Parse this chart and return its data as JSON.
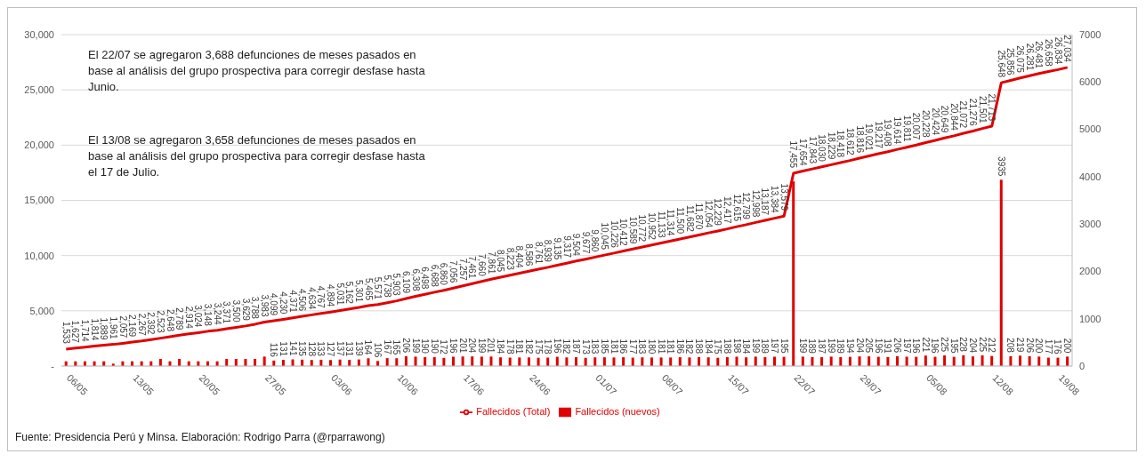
{
  "chart_data": {
    "type": "bar",
    "categories": [
      "06/05",
      null,
      null,
      null,
      null,
      null,
      null,
      "13/05",
      null,
      null,
      null,
      null,
      null,
      null,
      "20/05",
      null,
      null,
      null,
      null,
      null,
      null,
      "27/05",
      null,
      null,
      null,
      null,
      null,
      null,
      "03/06",
      null,
      null,
      null,
      null,
      null,
      null,
      "10/06",
      null,
      null,
      null,
      null,
      null,
      null,
      "17/06",
      null,
      null,
      null,
      null,
      null,
      null,
      "24/06",
      null,
      null,
      null,
      null,
      null,
      null,
      "01/07",
      null,
      null,
      null,
      null,
      null,
      null,
      "08/07",
      null,
      null,
      null,
      null,
      null,
      null,
      "15/07",
      null,
      null,
      null,
      null,
      null,
      null,
      "22/07",
      null,
      null,
      null,
      null,
      null,
      null,
      "29/07",
      null,
      null,
      null,
      null,
      null,
      null,
      "05/08",
      null,
      null,
      null,
      null,
      null,
      null,
      "12/08",
      null,
      null,
      null,
      null,
      null,
      null,
      "19/08",
      null
    ],
    "series": [
      {
        "name": "Fallecidos (nuevos)",
        "color": "#e00000",
        "axis": "y2",
        "values": [
          100,
          100,
          100,
          100,
          100,
          50,
          100,
          100,
          100,
          100,
          150,
          100,
          150,
          100,
          100,
          100,
          100,
          150,
          150,
          150,
          150,
          200,
          116,
          131,
          141,
          135,
          128,
          133,
          127,
          137,
          131,
          139,
          164,
          106,
          167,
          165,
          206,
          199,
          190,
          190,
          172,
          196,
          201,
          204,
          199,
          201,
          184,
          178,
          181,
          182,
          175,
          178,
          196,
          182,
          187,
          173,
          183,
          185,
          181,
          186,
          177,
          183,
          180,
          181,
          181,
          186,
          182,
          188,
          184,
          175,
          188,
          198,
          184,
          199,
          189,
          197,
          195,
          3900,
          199,
          189,
          187,
          199,
          189,
          194,
          204,
          205,
          196,
          191,
          206,
          197,
          196,
          221,
          196,
          225,
          195,
          228,
          204,
          225,
          212,
          3935,
          208,
          219,
          206,
          200,
          177,
          176,
          200
        ],
        "value_labels": [
          null,
          null,
          null,
          null,
          null,
          null,
          null,
          null,
          null,
          null,
          null,
          null,
          null,
          null,
          null,
          null,
          null,
          null,
          null,
          null,
          null,
          null,
          "116",
          "131",
          "141",
          "135",
          "128",
          "133",
          "127",
          "137",
          "131",
          "139",
          "164",
          "106",
          "167",
          "165",
          "206",
          "199",
          "190",
          "190",
          "172",
          "196",
          "201",
          "204",
          "199",
          "201",
          "184",
          "178",
          "181",
          "182",
          "175",
          "178",
          "196",
          "182",
          "187",
          "173",
          "183",
          "185",
          "181",
          "186",
          "177",
          "183",
          "180",
          "181",
          "181",
          "186",
          "182",
          "188",
          "184",
          "175",
          "188",
          "198",
          "184",
          "199",
          "189",
          "197",
          "195",
          null,
          "199",
          "189",
          "187",
          "199",
          "189",
          "194",
          "204",
          "205",
          "196",
          "191",
          "206",
          "197",
          "196",
          "221",
          "196",
          "225",
          "195",
          "228",
          "204",
          "225",
          "212",
          "3935",
          "208",
          "219",
          "206",
          "200",
          "177",
          "176",
          "200"
        ]
      },
      {
        "type": "line",
        "name": "Fallecidos (Total)",
        "color": "#e00000",
        "values": [
          1533,
          1627,
          1714,
          1814,
          1889,
          1961,
          2057,
          2169,
          2267,
          2392,
          2523,
          2648,
          2789,
          2914,
          3024,
          3148,
          3244,
          3371,
          3500,
          3629,
          3788,
          3983,
          4099,
          4230,
          4371,
          4506,
          4634,
          4767,
          4894,
          5031,
          5162,
          5301,
          5465,
          5571,
          5738,
          5903,
          6109,
          6308,
          6498,
          6688,
          6860,
          7056,
          7257,
          7461,
          7660,
          7861,
          8045,
          8223,
          8404,
          8586,
          8761,
          8939,
          9135,
          9317,
          9504,
          9677,
          9860,
          10045,
          10226,
          10412,
          10589,
          10772,
          10952,
          11133,
          11314,
          11500,
          11682,
          11870,
          12054,
          12229,
          12417,
          12615,
          12799,
          12998,
          13187,
          13384,
          13579,
          17455,
          17654,
          17843,
          18030,
          18229,
          18418,
          18612,
          18816,
          19021,
          19217,
          19408,
          19614,
          19811,
          20007,
          20228,
          20424,
          20649,
          20844,
          21072,
          21276,
          21501,
          21713,
          25648,
          25856,
          26075,
          26281,
          26481,
          26658,
          26834,
          27034
        ],
        "value_labels": [
          "1,533",
          "1,627",
          "1,714",
          "1,814",
          "1,889",
          "1,961",
          "2,057",
          "2,169",
          "2,267",
          "2,392",
          "2,523",
          "2,648",
          "2,789",
          "2,914",
          "3,024",
          "3,148",
          "3,244",
          "3,371",
          "3,500",
          "3,629",
          "3,788",
          "3,983",
          "4,099",
          "4,230",
          "4,371",
          "4,506",
          "4,634",
          "4,767",
          "4,894",
          "5,031",
          "5,162",
          "5,301",
          "5,465",
          "5,571",
          "5,738",
          "5,903",
          "6,109",
          "6,308",
          "6,498",
          "6,688",
          "6,860",
          "7,056",
          "7,257",
          "7,461",
          "7,660",
          "7,861",
          "8,045",
          "8,223",
          "8,404",
          "8,586",
          "8,761",
          "8,939",
          "9,135",
          "9,317",
          "9,504",
          "9,677",
          "9,860",
          "10,045",
          "10,226",
          "10,412",
          "10,589",
          "10,772",
          "10,952",
          "11,133",
          "11,314",
          "11,500",
          "11,682",
          "11,870",
          "12,054",
          "12,229",
          "12,417",
          "12,615",
          "12,799",
          "12,998",
          "13,187",
          "13,384",
          "13,579",
          "17,455",
          "17,654",
          "17,843",
          "18,030",
          "18,229",
          "18,418",
          "18,612",
          "18,816",
          "19,021",
          "19,217",
          "19,408",
          "19,614",
          "19,811",
          "20,007",
          "20,228",
          "20,424",
          "20,649",
          "20,844",
          "21,072",
          "21,276",
          "21,501",
          "21,713",
          "25,648",
          "25,856",
          "26,075",
          "26,281",
          "26,481",
          "26,658",
          "26,834",
          "27,034"
        ]
      }
    ],
    "ylim": [
      0,
      30000
    ],
    "yticks": [
      {
        "value": 0,
        "label": "-"
      },
      {
        "value": 5000,
        "label": "5,000"
      },
      {
        "value": 10000,
        "label": "10,000"
      },
      {
        "value": 15000,
        "label": "15,000"
      },
      {
        "value": 20000,
        "label": "20,000"
      },
      {
        "value": 25000,
        "label": "25,000"
      },
      {
        "value": 30000,
        "label": "30,000"
      }
    ],
    "y2lim": [
      0,
      7000
    ],
    "y2ticks": [
      0,
      1000,
      2000,
      3000,
      4000,
      5000,
      6000,
      7000
    ],
    "grid": "y",
    "legend": "bottom",
    "annotations": [
      "El 22/07 se agregaron 3,688 defunciones de meses pasados en base al análisis del grupo prospectiva para corregir desfase hasta Junio.",
      "El 13/08 se agregaron 3,658 defunciones de meses pasados en base al análisis del grupo prospectiva para corregir desfase hasta el 17 de Julio.",
      "Fuente: Presidencia Perú y Minsa. Elaboración: Rodrigo Parra (@rparrawong)"
    ]
  }
}
